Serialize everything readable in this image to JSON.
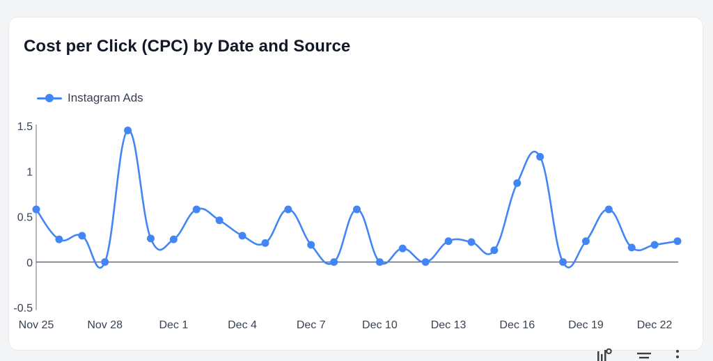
{
  "chart_data": {
    "type": "line",
    "title": "Cost per Click (CPC) by Date and Source",
    "xlabel": "",
    "ylabel": "",
    "ylim": [
      -0.5,
      1.5
    ],
    "yticks": [
      -0.5,
      0,
      0.5,
      1,
      1.5
    ],
    "ytick_labels": [
      "-0.5",
      "0",
      "0.5",
      "1",
      "1.5"
    ],
    "xtick_labels": [
      "Nov 25",
      "Nov 28",
      "Dec 1",
      "Dec 4",
      "Dec 7",
      "Dec 10",
      "Dec 13",
      "Dec 16",
      "Dec 19",
      "Dec 22"
    ],
    "xtick_index": [
      0,
      3,
      6,
      9,
      12,
      15,
      18,
      21,
      24,
      27
    ],
    "x": [
      "Nov 25",
      "Nov 26",
      "Nov 27",
      "Nov 28",
      "Nov 29",
      "Nov 30",
      "Dec 1",
      "Dec 2",
      "Dec 3",
      "Dec 4",
      "Dec 5",
      "Dec 6",
      "Dec 7",
      "Dec 8",
      "Dec 9",
      "Dec 10",
      "Dec 11",
      "Dec 12",
      "Dec 13",
      "Dec 14",
      "Dec 15",
      "Dec 16",
      "Dec 17",
      "Dec 18",
      "Dec 19",
      "Dec 20",
      "Dec 21",
      "Dec 22",
      "Dec 23"
    ],
    "legend_position": "top-left",
    "grid": false,
    "series": [
      {
        "name": "Instagram Ads",
        "color": "#4285f4",
        "values": [
          0.58,
          0.25,
          0.29,
          0.0,
          1.45,
          0.26,
          0.25,
          0.58,
          0.46,
          0.29,
          0.21,
          0.58,
          0.19,
          0.0,
          0.58,
          0.0,
          0.15,
          0.0,
          0.23,
          0.22,
          0.13,
          0.87,
          1.16,
          0.0,
          0.23,
          0.58,
          0.16,
          0.19,
          0.23
        ]
      }
    ]
  },
  "toolbar": {
    "icons": [
      "chart-settings-icon",
      "filter-icon",
      "more-vert-icon"
    ]
  }
}
